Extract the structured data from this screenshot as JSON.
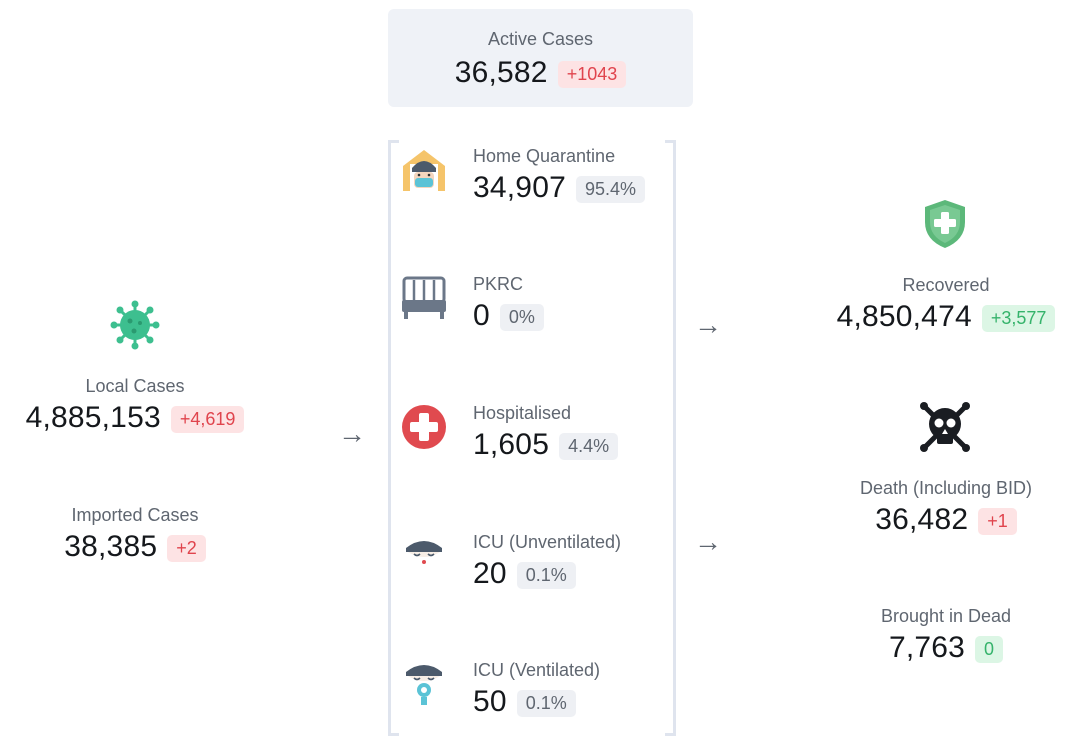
{
  "active": {
    "label": "Active Cases",
    "value": "36,582",
    "change": "+1043"
  },
  "local": {
    "label": "Local Cases",
    "value": "4,885,153",
    "change": "+4,619",
    "icon": "virus-icon"
  },
  "imported": {
    "label": "Imported Cases",
    "value": "38,385",
    "change": "+2"
  },
  "breakdown": [
    {
      "label": "Home Quarantine",
      "value": "34,907",
      "pct": "95.4%",
      "icon": "home-quarantine-icon"
    },
    {
      "label": "PKRC",
      "value": "0",
      "pct": "0%",
      "icon": "bed-icon"
    },
    {
      "label": "Hospitalised",
      "value": "1,605",
      "pct": "4.4%",
      "icon": "hospital-cross-icon"
    },
    {
      "label": "ICU (Unventilated)",
      "value": "20",
      "pct": "0.1%",
      "icon": "icu-patient-icon"
    },
    {
      "label": "ICU (Ventilated)",
      "value": "50",
      "pct": "0.1%",
      "icon": "ventilated-patient-icon"
    }
  ],
  "recovered": {
    "label": "Recovered",
    "value": "4,850,474",
    "change": "+3,577",
    "icon": "shield-plus-icon"
  },
  "death": {
    "label": "Death (Including BID)",
    "value": "36,482",
    "change": "+1",
    "icon": "skull-crossbones-icon"
  },
  "bid": {
    "label": "Brought in Dead",
    "value": "7,763",
    "change": "0"
  },
  "colors": {
    "red": "#e0444d",
    "green": "#35b36b",
    "shield": "#5cb87a",
    "virus": "#3dbf8f"
  }
}
